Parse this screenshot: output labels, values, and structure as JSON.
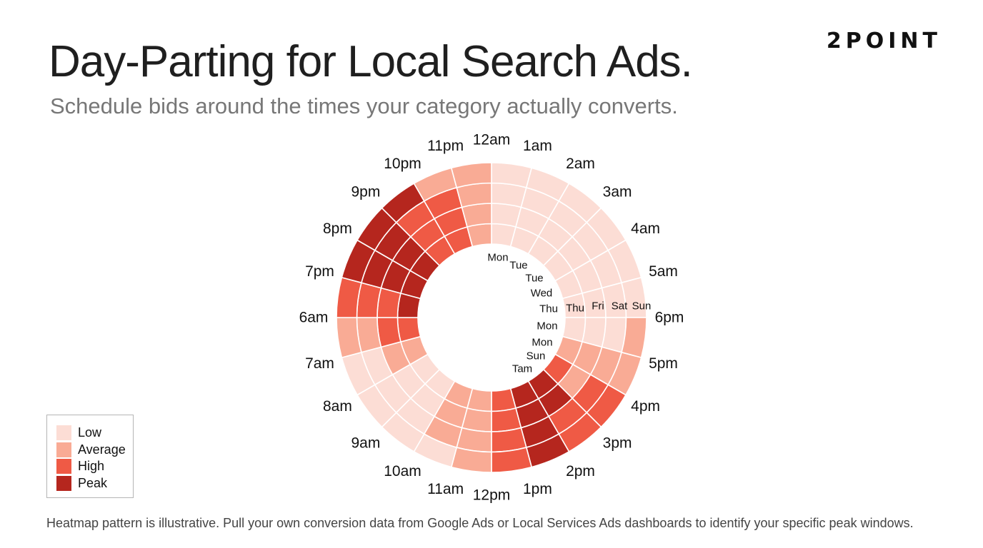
{
  "title": "Day-Parting for Local Search Ads.",
  "subtitle": "Schedule bids around the times your category actually converts.",
  "brand": "2POINT",
  "footnote": "Heatmap pattern is illustrative. Pull your own conversion data from Google Ads or Local Services Ads dashboards to identify your specific peak windows.",
  "colors": {
    "low": "#fcddd5",
    "average": "#f9ab95",
    "high": "#ef5a45",
    "peak": "#b5261e",
    "gridline": "#ffffff"
  },
  "legend": {
    "items": [
      {
        "label": "Low",
        "level": "low"
      },
      {
        "label": "Average",
        "level": "average"
      },
      {
        "label": "High",
        "level": "high"
      },
      {
        "label": "Peak",
        "level": "peak"
      }
    ]
  },
  "chart_data": {
    "type": "heatmap",
    "layout": "radial",
    "hour_labels": [
      "12am",
      "1am",
      "2am",
      "3am",
      "4am",
      "5am",
      "6pm",
      "5pm",
      "4pm",
      "3pm",
      "2pm",
      "1pm",
      "12pm",
      "11am",
      "10am",
      "9am",
      "8am",
      "7am",
      "6am",
      "7pm",
      "8pm",
      "9pm",
      "10pm",
      "11pm"
    ],
    "day_labels_vertical": [
      "Mon",
      "Tue",
      "Tue",
      "Wed",
      "Thu",
      "Mon",
      "Mon",
      "Sun",
      "Tam"
    ],
    "day_labels_horizontal": [
      "Thu",
      "Fri",
      "Sat",
      "Sun"
    ],
    "ring_values": [
      [
        "low",
        "low",
        "low",
        "low"
      ],
      [
        "low",
        "low",
        "low",
        "low"
      ],
      [
        "low",
        "low",
        "low",
        "low"
      ],
      [
        "low",
        "low",
        "low",
        "low"
      ],
      [
        "low",
        "low",
        "low",
        "low"
      ],
      [
        "low",
        "low",
        "low",
        "low"
      ],
      [
        "low",
        "low",
        "low",
        "average"
      ],
      [
        "average",
        "average",
        "average",
        "average"
      ],
      [
        "high",
        "average",
        "high",
        "high"
      ],
      [
        "peak",
        "peak",
        "high",
        "high"
      ],
      [
        "peak",
        "peak",
        "peak",
        "peak"
      ],
      [
        "high",
        "high",
        "high",
        "high"
      ],
      [
        "average",
        "average",
        "average",
        "average"
      ],
      [
        "average",
        "average",
        "average",
        "low"
      ],
      [
        "low",
        "low",
        "low",
        "low"
      ],
      [
        "low",
        "low",
        "low",
        "low"
      ],
      [
        "average",
        "average",
        "low",
        "low"
      ],
      [
        "high",
        "high",
        "average",
        "average"
      ],
      [
        "peak",
        "high",
        "high",
        "high"
      ],
      [
        "peak",
        "peak",
        "peak",
        "peak"
      ],
      [
        "peak",
        "peak",
        "peak",
        "peak"
      ],
      [
        "high",
        "high",
        "high",
        "peak"
      ],
      [
        "high",
        "high",
        "high",
        "average"
      ],
      [
        "average",
        "average",
        "average",
        "average"
      ]
    ]
  }
}
